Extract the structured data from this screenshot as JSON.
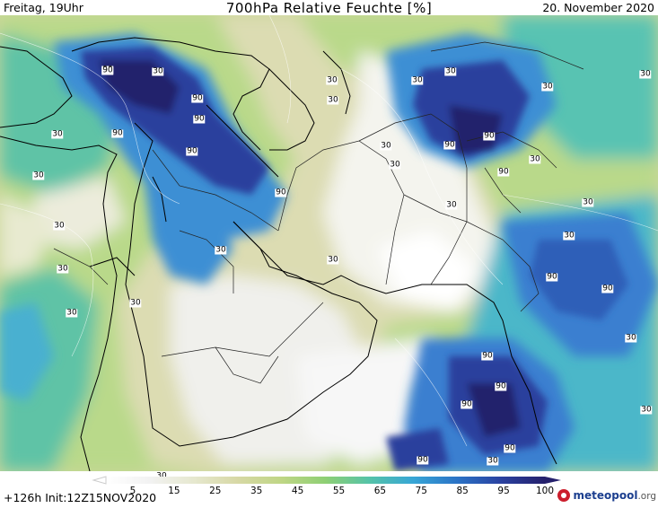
{
  "header": {
    "left": "Freitag, 19Uhr",
    "title": "700hPa Relative Feuchte [%]",
    "date": "20. November 2020"
  },
  "footer": {
    "run_info": "+126h Init:12Z15NOV2020",
    "brand": "meteopool",
    "brand_tld": ".org"
  },
  "legend": {
    "ticks": [
      "5",
      "15",
      "25",
      "35",
      "45",
      "55",
      "65",
      "75",
      "85",
      "95",
      "100"
    ],
    "colors": [
      "#ffffff",
      "#f2f2f2",
      "#e6e8cf",
      "#d7d8a5",
      "#bfd685",
      "#8ecf74",
      "#55c3a8",
      "#37a6d6",
      "#2b73c6",
      "#2a41a0",
      "#25206c"
    ]
  },
  "map": {
    "variable": "relative humidity 700hPa",
    "region": "Middle East / Arabian Sea",
    "contour_labels": [
      "90",
      "90",
      "90",
      "90",
      "90",
      "90",
      "90",
      "90",
      "90",
      "90",
      "90",
      "90",
      "90",
      "90",
      "90",
      "90",
      "90",
      "30",
      "30",
      "30",
      "30",
      "30",
      "30",
      "30",
      "30",
      "30",
      "30",
      "30",
      "30",
      "30",
      "30",
      "30",
      "30",
      "30",
      "30",
      "30",
      "30",
      "30",
      "30",
      "30",
      "30",
      "30"
    ]
  }
}
